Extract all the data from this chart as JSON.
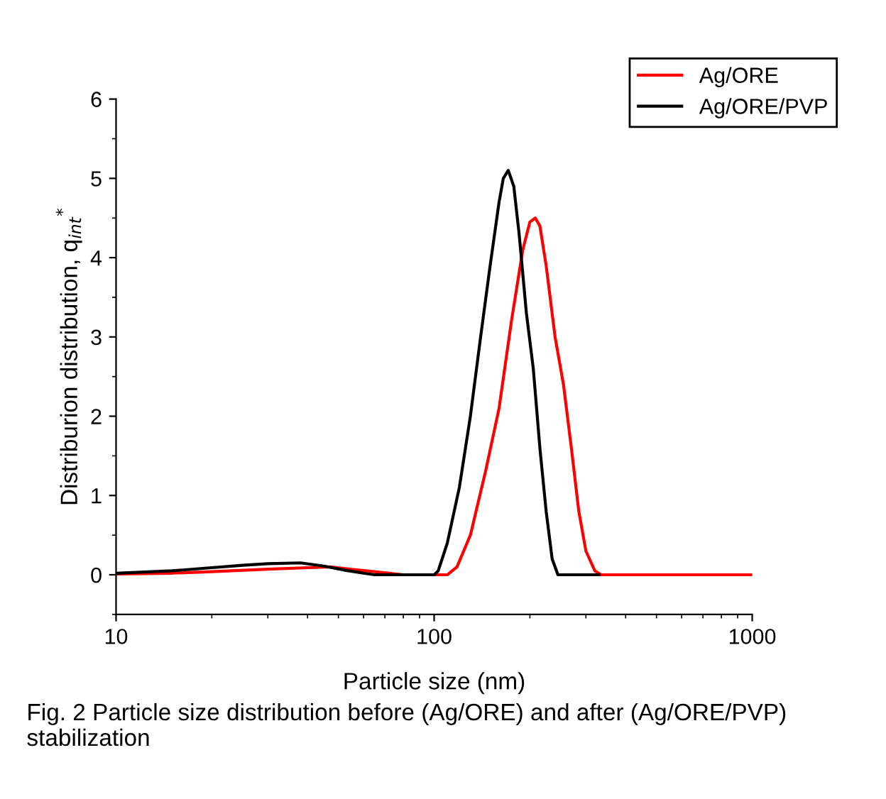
{
  "chart_data": {
    "type": "line",
    "xlabel": "Particle size (nm)",
    "ylabel": "Distriburion distribution, q$_{int}$$^{*}$",
    "log": "x",
    "xlim": [
      10,
      1000
    ],
    "xticks": [
      10,
      100,
      1000
    ],
    "ylim": [
      -0.5,
      6
    ],
    "yticks": [
      0,
      1,
      2,
      3,
      4,
      5,
      6
    ],
    "grid": false,
    "legend": "top right",
    "marker": "none",
    "line_style": "solid",
    "series": [
      {
        "name": "Ag/ORE",
        "color": "#ff0000",
        "x": [
          10,
          15,
          20,
          30,
          40,
          47,
          55,
          65,
          80,
          110,
          118,
          130,
          145,
          160,
          175,
          190,
          200,
          208,
          215,
          225,
          240,
          255,
          270,
          285,
          300,
          320,
          335,
          1000
        ],
        "values": [
          0.01,
          0.02,
          0.04,
          0.07,
          0.09,
          0.1,
          0.07,
          0.04,
          0,
          0,
          0.1,
          0.5,
          1.3,
          2.1,
          3.2,
          4.1,
          4.45,
          4.5,
          4.4,
          3.9,
          3.0,
          2.4,
          1.6,
          0.8,
          0.3,
          0.05,
          0,
          0
        ]
      },
      {
        "name": "Ag/ORE/PVP",
        "color": "#000000",
        "x": [
          10,
          15,
          20,
          25,
          30,
          38,
          45,
          52,
          60,
          65,
          100,
          103,
          110,
          120,
          130,
          140,
          150,
          160,
          165,
          171,
          178,
          185,
          195,
          205,
          215,
          225,
          235,
          245,
          330
        ],
        "values": [
          0.02,
          0.05,
          0.09,
          0.12,
          0.14,
          0.15,
          0.11,
          0.06,
          0.02,
          0,
          0,
          0.05,
          0.4,
          1.1,
          2.0,
          3.0,
          3.9,
          4.7,
          5.0,
          5.1,
          4.9,
          4.3,
          3.3,
          2.6,
          1.6,
          0.8,
          0.2,
          0,
          0
        ]
      }
    ],
    "annotations": [
      "Fig. 2 Particle size distribution before (Ag/ORE) and after (Ag/ORE/PVP) stabilization"
    ]
  }
}
